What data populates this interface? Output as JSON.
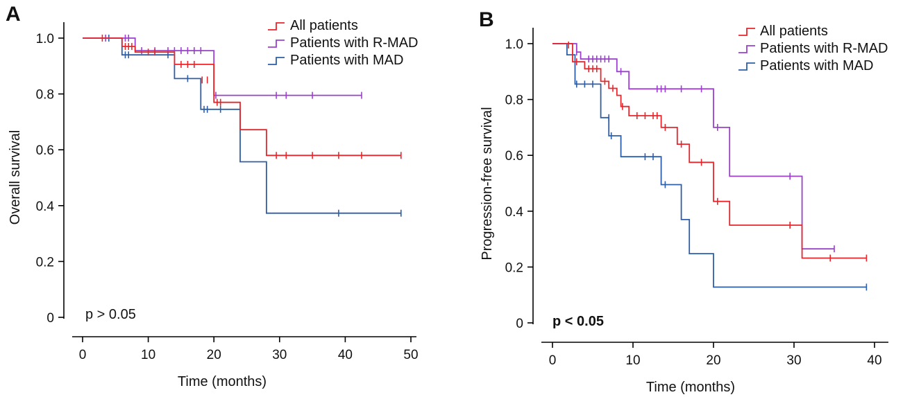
{
  "colors": {
    "all": "#e8252b",
    "rmad": "#9b3fcf",
    "mad": "#2d5ea8"
  },
  "chart_data": [
    {
      "panel_label": "A",
      "type": "line",
      "step": true,
      "xlabel": "Time (months)",
      "ylabel": "Overall survival",
      "xlim": [
        0,
        50
      ],
      "ylim": [
        0,
        1.0
      ],
      "xticks": [
        "0",
        "10",
        "20",
        "30",
        "40",
        "50"
      ],
      "yticks": [
        "0",
        "0.2",
        "0.4",
        "0.6",
        "0.8",
        "1.0"
      ],
      "annotation": "p > 0.05",
      "legend_position": "top-right",
      "series": [
        {
          "name": "All patients",
          "color_key": "all",
          "steps": [
            [
              0,
              1.0
            ],
            [
              6,
              0.97
            ],
            [
              8,
              0.95
            ],
            [
              14,
              0.906
            ],
            [
              20,
              0.77
            ],
            [
              24,
              0.672
            ],
            [
              28,
              0.58
            ],
            [
              48.5,
              0.58
            ]
          ],
          "censored": [
            [
              3,
              1.0
            ],
            [
              6.5,
              0.97
            ],
            [
              7,
              0.97
            ],
            [
              7.5,
              0.97
            ],
            [
              10,
              0.95
            ],
            [
              11,
              0.95
            ],
            [
              15,
              0.906
            ],
            [
              16,
              0.906
            ],
            [
              17,
              0.906
            ],
            [
              18.2,
              0.85
            ],
            [
              19,
              0.85
            ],
            [
              20.5,
              0.77
            ],
            [
              21,
              0.77
            ],
            [
              29.5,
              0.58
            ],
            [
              31,
              0.58
            ],
            [
              35,
              0.58
            ],
            [
              39,
              0.58
            ],
            [
              42.5,
              0.58
            ],
            [
              48.5,
              0.58
            ]
          ]
        },
        {
          "name": "Patients with R-MAD",
          "color_key": "rmad",
          "steps": [
            [
              0,
              1.0
            ],
            [
              8,
              0.955
            ],
            [
              20,
              0.795
            ],
            [
              42.5,
              0.795
            ]
          ],
          "censored": [
            [
              3.5,
              1.0
            ],
            [
              6.5,
              1.0
            ],
            [
              7,
              1.0
            ],
            [
              9,
              0.955
            ],
            [
              11,
              0.955
            ],
            [
              13,
              0.955
            ],
            [
              14,
              0.955
            ],
            [
              15,
              0.955
            ],
            [
              16,
              0.955
            ],
            [
              17,
              0.955
            ],
            [
              18,
              0.955
            ],
            [
              20.3,
              0.795
            ],
            [
              29.5,
              0.795
            ],
            [
              31,
              0.795
            ],
            [
              35,
              0.795
            ],
            [
              42.5,
              0.795
            ]
          ]
        },
        {
          "name": "Patients with MAD",
          "color_key": "mad",
          "steps": [
            [
              0,
              1.0
            ],
            [
              6,
              0.94
            ],
            [
              14,
              0.855
            ],
            [
              18,
              0.745
            ],
            [
              24,
              0.557
            ],
            [
              28,
              0.373
            ],
            [
              48.5,
              0.373
            ]
          ],
          "censored": [
            [
              4,
              1.0
            ],
            [
              6.5,
              0.94
            ],
            [
              7,
              0.94
            ],
            [
              13,
              0.94
            ],
            [
              16,
              0.855
            ],
            [
              18.5,
              0.745
            ],
            [
              19,
              0.745
            ],
            [
              21,
              0.745
            ],
            [
              39,
              0.373
            ],
            [
              48.5,
              0.373
            ]
          ]
        }
      ]
    },
    {
      "panel_label": "B",
      "type": "line",
      "step": true,
      "xlabel": "Time (months)",
      "ylabel": "Progression-free survival",
      "xlim": [
        0,
        40
      ],
      "ylim": [
        0,
        1.0
      ],
      "xticks": [
        "0",
        "10",
        "20",
        "30",
        "40"
      ],
      "yticks": [
        "0",
        "0.2",
        "0.4",
        "0.6",
        "0.8",
        "1.0"
      ],
      "annotation": "p < 0.05",
      "legend_position": "top-right",
      "series": [
        {
          "name": "All patients",
          "color_key": "all",
          "steps": [
            [
              0,
              1.0
            ],
            [
              2.5,
              0.935
            ],
            [
              4,
              0.91
            ],
            [
              6,
              0.865
            ],
            [
              7,
              0.84
            ],
            [
              8,
              0.815
            ],
            [
              8.5,
              0.775
            ],
            [
              9.5,
              0.742
            ],
            [
              13.5,
              0.7
            ],
            [
              15.5,
              0.64
            ],
            [
              17,
              0.575
            ],
            [
              20,
              0.435
            ],
            [
              22,
              0.35
            ],
            [
              31,
              0.232
            ],
            [
              39,
              0.232
            ]
          ],
          "censored": [
            [
              2,
              0.995
            ],
            [
              3,
              0.935
            ],
            [
              4.5,
              0.91
            ],
            [
              5,
              0.91
            ],
            [
              5.5,
              0.91
            ],
            [
              6.5,
              0.865
            ],
            [
              7.5,
              0.84
            ],
            [
              8.7,
              0.775
            ],
            [
              10.5,
              0.742
            ],
            [
              11.5,
              0.742
            ],
            [
              12.5,
              0.742
            ],
            [
              13,
              0.742
            ],
            [
              14,
              0.7
            ],
            [
              16,
              0.64
            ],
            [
              18.5,
              0.575
            ],
            [
              20.5,
              0.435
            ],
            [
              29.5,
              0.35
            ],
            [
              34.5,
              0.232
            ],
            [
              39,
              0.232
            ]
          ]
        },
        {
          "name": "Patients with R-MAD",
          "color_key": "rmad",
          "steps": [
            [
              0,
              1.0
            ],
            [
              3,
              0.97
            ],
            [
              3.5,
              0.945
            ],
            [
              8,
              0.9
            ],
            [
              9.5,
              0.838
            ],
            [
              20,
              0.7
            ],
            [
              22,
              0.525
            ],
            [
              31,
              0.265
            ],
            [
              35,
              0.265
            ]
          ],
          "censored": [
            [
              3,
              0.97
            ],
            [
              4.5,
              0.945
            ],
            [
              5,
              0.945
            ],
            [
              5.5,
              0.945
            ],
            [
              6,
              0.945
            ],
            [
              6.5,
              0.945
            ],
            [
              7,
              0.945
            ],
            [
              8.5,
              0.9
            ],
            [
              13,
              0.838
            ],
            [
              13.5,
              0.838
            ],
            [
              14,
              0.838
            ],
            [
              16,
              0.838
            ],
            [
              18.5,
              0.838
            ],
            [
              20.5,
              0.7
            ],
            [
              29.5,
              0.525
            ],
            [
              35,
              0.265
            ]
          ]
        },
        {
          "name": "Patients with MAD",
          "color_key": "mad",
          "steps": [
            [
              0,
              1.0
            ],
            [
              1.8,
              0.96
            ],
            [
              2.8,
              0.855
            ],
            [
              6,
              0.735
            ],
            [
              7,
              0.67
            ],
            [
              8.5,
              0.595
            ],
            [
              13.5,
              0.495
            ],
            [
              16,
              0.37
            ],
            [
              17,
              0.248
            ],
            [
              20,
              0.128
            ],
            [
              39,
              0.128
            ]
          ],
          "censored": [
            [
              3,
              0.855
            ],
            [
              4,
              0.855
            ],
            [
              5,
              0.855
            ],
            [
              7,
              0.735
            ],
            [
              7.3,
              0.67
            ],
            [
              11.5,
              0.595
            ],
            [
              12.5,
              0.595
            ],
            [
              14,
              0.495
            ],
            [
              39,
              0.128
            ]
          ]
        }
      ]
    }
  ]
}
